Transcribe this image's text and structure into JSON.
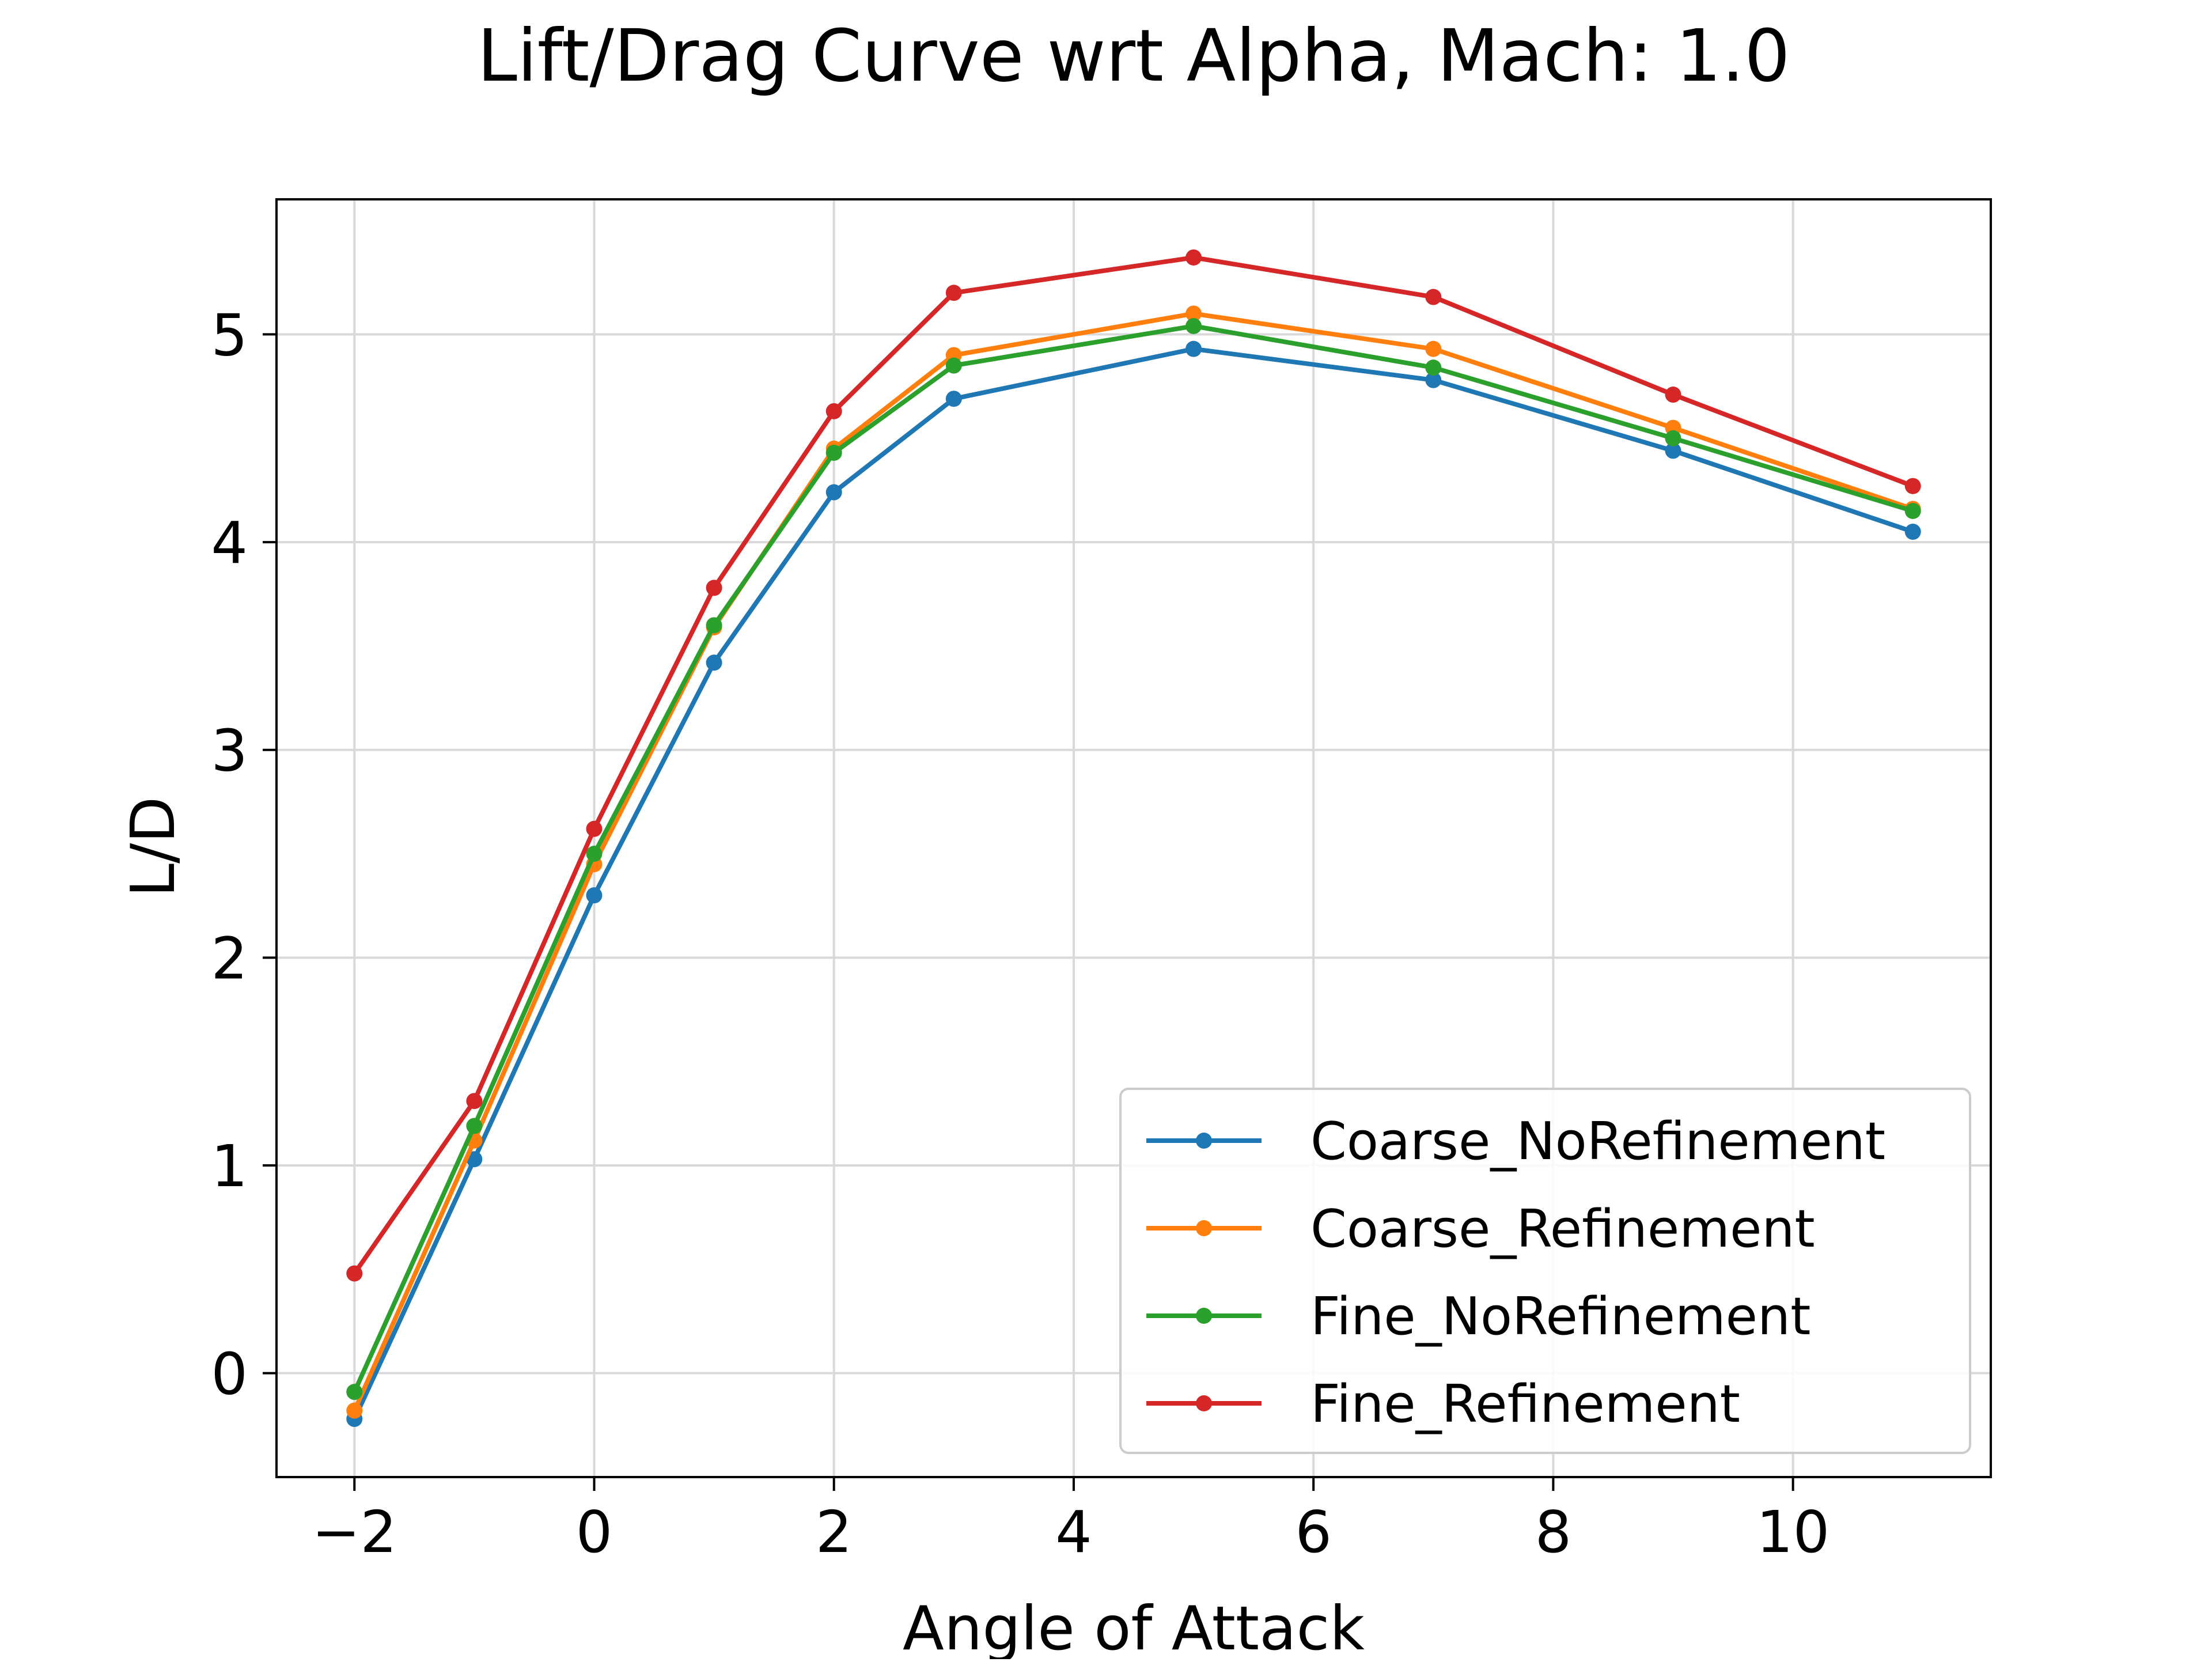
{
  "chart_data": {
    "type": "line",
    "title": "Lift/Drag Curve wrt Alpha, Mach: 1.0",
    "xlabel": "Angle of Attack",
    "ylabel": "L/D",
    "xlim": [
      -2.65,
      11.65
    ],
    "ylim": [
      -0.5,
      5.65
    ],
    "xticks": [
      -2,
      0,
      2,
      4,
      6,
      8,
      10
    ],
    "xtick_labels": [
      "−2",
      "0",
      "2",
      "4",
      "6",
      "8",
      "10"
    ],
    "yticks": [
      0,
      1,
      2,
      3,
      4,
      5
    ],
    "ytick_labels": [
      "0",
      "1",
      "2",
      "3",
      "4",
      "5"
    ],
    "grid": true,
    "legend_position": "lower-right",
    "x": [
      -2,
      -1,
      0,
      1,
      2,
      3,
      5,
      7,
      9,
      11
    ],
    "series": [
      {
        "name": "Coarse_NoRefinement",
        "color": "#1f77b4",
        "values": [
          -0.22,
          1.03,
          2.3,
          3.42,
          4.24,
          4.69,
          4.93,
          4.78,
          4.44,
          4.05
        ]
      },
      {
        "name": "Coarse_Refinement",
        "color": "#ff7f0e",
        "values": [
          -0.18,
          1.12,
          2.45,
          3.59,
          4.45,
          4.9,
          5.1,
          4.93,
          4.55,
          4.16
        ]
      },
      {
        "name": "Fine_NoRefinement",
        "color": "#2ca02c",
        "values": [
          -0.09,
          1.19,
          2.5,
          3.6,
          4.43,
          4.85,
          5.04,
          4.84,
          4.5,
          4.15
        ]
      },
      {
        "name": "Fine_Refinement",
        "color": "#d62728",
        "values": [
          0.48,
          1.31,
          2.62,
          3.78,
          4.63,
          5.2,
          5.37,
          5.18,
          4.71,
          4.27
        ]
      }
    ]
  }
}
